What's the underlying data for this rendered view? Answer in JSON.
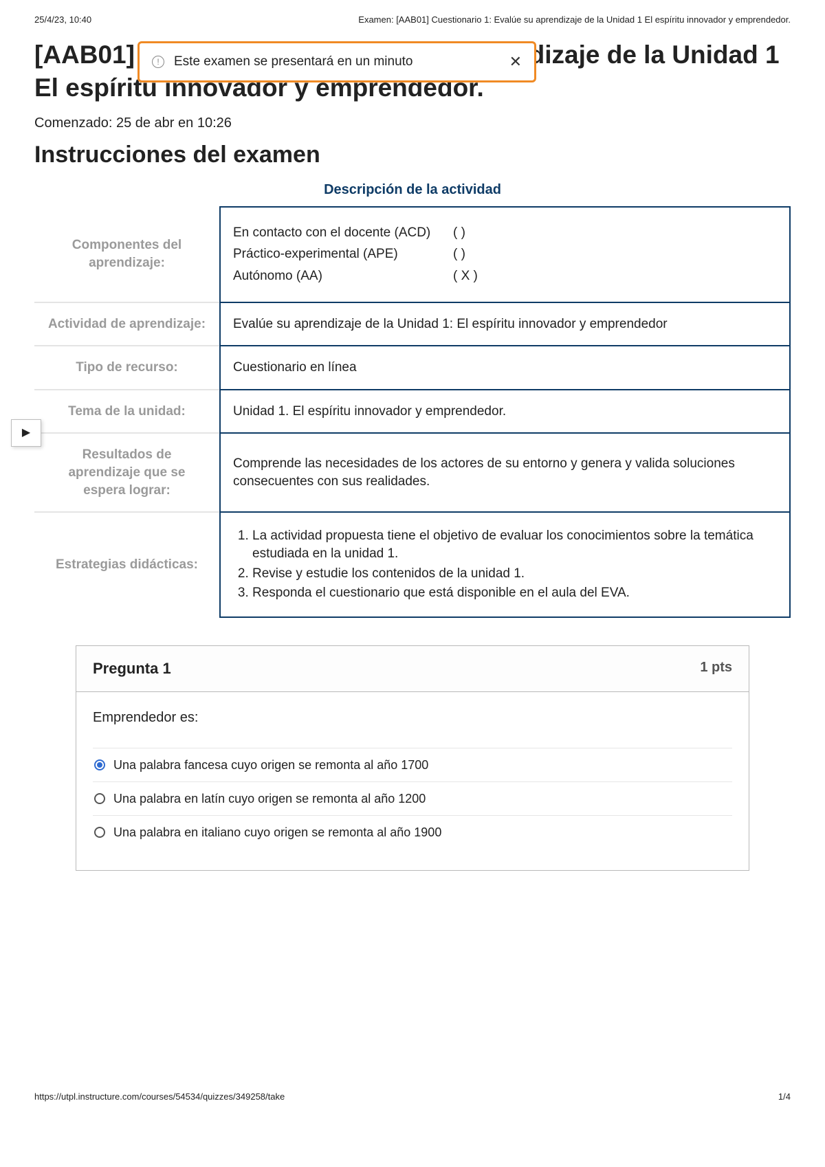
{
  "print_header": {
    "datetime": "25/4/23, 10:40",
    "doc_title": "Examen: [AAB01] Cuestionario 1: Evalúe su aprendizaje de la Unidad 1 El espíritu innovador y emprendedor."
  },
  "page_title": "[AAB01] Cuestionario 1: Evalúe su aprendizaje de la Unidad 1 El espíritu innovador y emprendedor.",
  "started_text": "Comenzado: 25 de abr en 10:26",
  "instructions_heading": "Instrucciones del examen",
  "table_heading": "Descripción de la actividad",
  "notice": {
    "text": "Este examen se presentará en un minuto",
    "close_glyph": "✕",
    "info_glyph": "!"
  },
  "side_tab_glyph": "▶",
  "colors": {
    "table_border": "#0e3b66",
    "label_gray": "#9a9a9a",
    "notice_border": "#f08a24",
    "radio_selected": "#2f6bd1"
  },
  "rows": {
    "componentes": {
      "label": "Componentes del aprendizaje:",
      "items": [
        {
          "name": "En contacto con el docente (ACD)",
          "mark": "(     )"
        },
        {
          "name": "Práctico-experimental (APE)",
          "mark": "(     )"
        },
        {
          "name": "Autónomo (AA)",
          "mark": "( X )"
        }
      ]
    },
    "actividad": {
      "label": "Actividad de aprendizaje:",
      "value": "Evalúe su aprendizaje de la Unidad 1: El espíritu innovador y emprendedor"
    },
    "tipo": {
      "label": "Tipo de recurso:",
      "value": "Cuestionario en línea"
    },
    "tema": {
      "label": "Tema de la unidad:",
      "value": "Unidad 1. El espíritu innovador y emprendedor."
    },
    "resultados": {
      "label": "Resultados de aprendizaje que se espera lograr:",
      "value": "Comprende las necesidades de los actores de su entorno y genera y valida soluciones consecuentes con sus realidades."
    },
    "estrategias": {
      "label": "Estrategias didácticas:",
      "items": [
        "La actividad propuesta tiene el objetivo de evaluar los conocimientos sobre la temática estudiada en la unidad 1.",
        "Revise y estudie los contenidos de la unidad 1.",
        "Responda el cuestionario que está disponible en el aula del EVA."
      ]
    }
  },
  "question": {
    "number_label": "Pregunta 1",
    "points_label": "1 pts",
    "prompt": "Emprendedor es:",
    "options": [
      {
        "text": "Una palabra fancesa cuyo origen se remonta al año 1700",
        "selected": true
      },
      {
        "text": "Una palabra en latín cuyo origen se remonta al año 1200",
        "selected": false
      },
      {
        "text": "Una palabra en italiano cuyo origen se remonta al año 1900",
        "selected": false
      }
    ]
  },
  "print_footer": {
    "url": "https://utpl.instructure.com/courses/54534/quizzes/349258/take",
    "page": "1/4"
  }
}
